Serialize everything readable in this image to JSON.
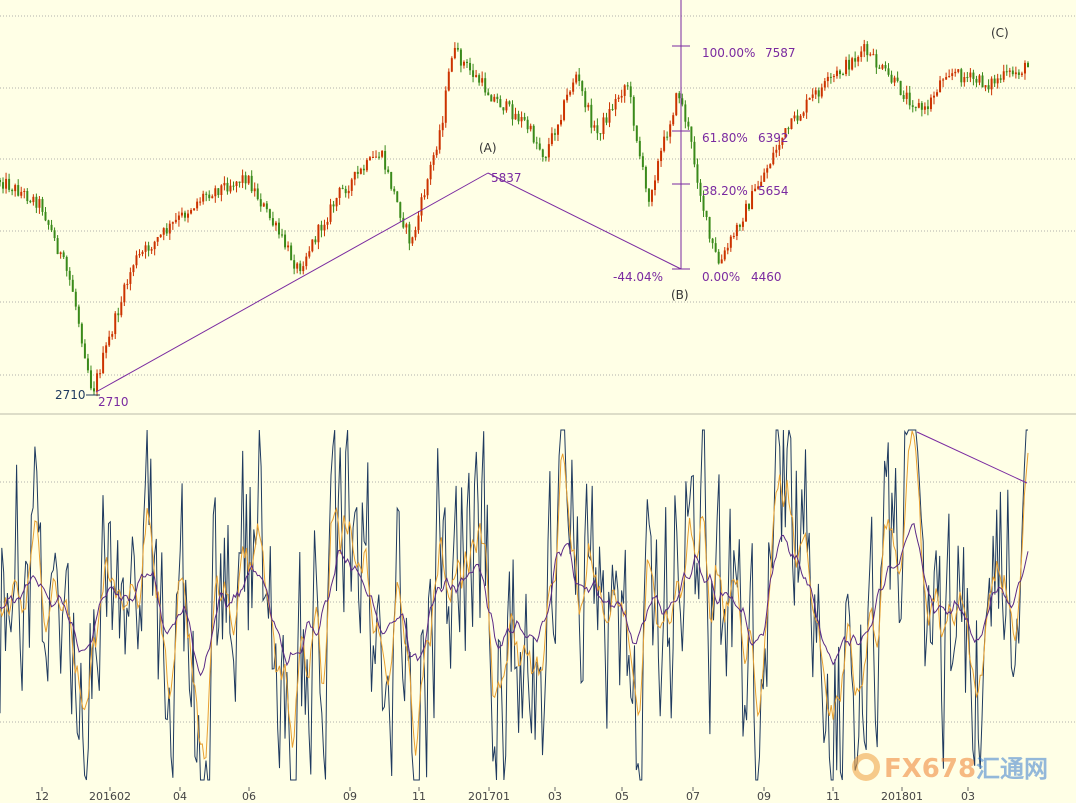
{
  "chart_data": [
    {
      "type": "candlestick",
      "y_approx_range": [
        2460,
        7900
      ],
      "grid": "horizontal-dotted",
      "colors": {
        "up": "#cc3300",
        "down": "#3a8a1a",
        "annotation": "#7a2aa0",
        "ink": "#333333"
      },
      "x_ticks": [
        "12",
        "201602",
        "04",
        "06",
        "09",
        "11",
        "201701",
        "03",
        "05",
        "07",
        "09",
        "11",
        "201801",
        "03"
      ],
      "wave_labels": {
        "a": "(A)",
        "b": "(B)",
        "c": "(C)"
      },
      "points": {
        "low": 2710,
        "low_left": "2710",
        "low_right": "2710",
        "peak_a": "5837",
        "trough_b": 4460
      },
      "change_label": "-44.04%",
      "fib_levels": [
        {
          "pct": "100.00%",
          "value": "7587"
        },
        {
          "pct": "61.80%",
          "value": "6392"
        },
        {
          "pct": "38.20%",
          "value": "5654"
        },
        {
          "pct": "0.00%",
          "value": "4460"
        }
      ],
      "anchor_fractions": [
        [
          0.0,
          0.62
        ],
        [
          0.04,
          0.55
        ],
        [
          0.07,
          0.31
        ],
        [
          0.09,
          0.0
        ],
        [
          0.13,
          0.38
        ],
        [
          0.2,
          0.58
        ],
        [
          0.24,
          0.63
        ],
        [
          0.29,
          0.36
        ],
        [
          0.33,
          0.58
        ],
        [
          0.37,
          0.7
        ],
        [
          0.4,
          0.43
        ],
        [
          0.43,
          0.79
        ],
        [
          0.44,
          1.0
        ],
        [
          0.48,
          0.86
        ],
        [
          0.51,
          0.79
        ],
        [
          0.53,
          0.69
        ],
        [
          0.56,
          0.93
        ],
        [
          0.58,
          0.75
        ],
        [
          0.61,
          0.91
        ],
        [
          0.63,
          0.56
        ],
        [
          0.66,
          0.88
        ],
        [
          0.67,
          0.76
        ],
        [
          0.69,
          0.45
        ],
        [
          0.7,
          0.37
        ],
        [
          0.72,
          0.5
        ],
        [
          0.74,
          0.62
        ],
        [
          0.76,
          0.74
        ],
        [
          0.79,
          0.86
        ],
        [
          0.84,
          1.0
        ],
        [
          0.88,
          0.87
        ],
        [
          0.9,
          0.82
        ],
        [
          0.92,
          0.94
        ],
        [
          0.96,
          0.9
        ],
        [
          1.0,
          0.95
        ]
      ]
    },
    {
      "type": "line",
      "y_approx_range": [
        0,
        100
      ],
      "grid": "horizontal-dotted",
      "series": [
        {
          "color": "#1f3a5f",
          "amplitude": 1.0
        },
        {
          "color": "#e8a030",
          "amplitude": 0.75
        },
        {
          "color": "#5b2a86",
          "amplitude": 0.45
        }
      ],
      "divergence_line_color": "#7a2aa0"
    }
  ],
  "watermark": {
    "text": "FX678",
    "cn": "汇通网"
  }
}
